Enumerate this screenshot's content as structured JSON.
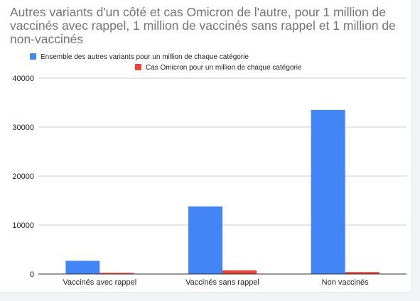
{
  "chart_data": {
    "type": "bar",
    "title": "Autres variants d'un côté et cas Omicron de l'autre, pour 1 million de vaccinés avec rappel, 1 million de vaccinés sans rappel et 1 million de non-vaccinés",
    "categories": [
      "Vaccinés avec rappel",
      "Vaccinés sans rappel",
      "Non vaccinés"
    ],
    "series": [
      {
        "name": "Ensemble des autres variants pour un million de chaque catégorie",
        "color": "#4285f4",
        "values": [
          2700,
          13800,
          33500
        ]
      },
      {
        "name": "Cas Omicron pour un million de chaque catégorie",
        "color": "#ea4335",
        "values": [
          250,
          750,
          400
        ]
      }
    ],
    "ylim": [
      0,
      40000
    ],
    "yticks": [
      "0",
      "10000",
      "20000",
      "30000",
      "40000"
    ],
    "xlabel": "",
    "ylabel": "",
    "grid": true,
    "legend_position": "top"
  }
}
